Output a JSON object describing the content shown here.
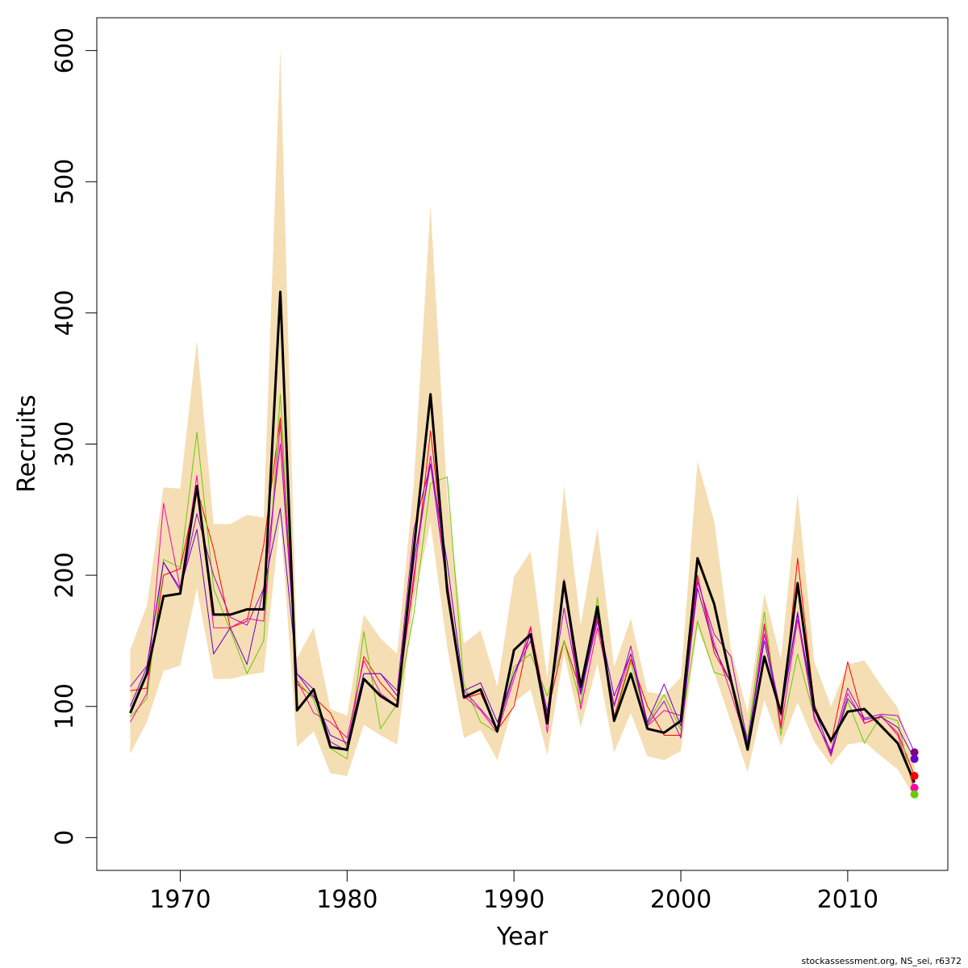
{
  "chart_data": {
    "type": "line",
    "xlabel": "Year",
    "ylabel": "Recruits",
    "xlim": [
      1965,
      2016
    ],
    "ylim": [
      -25,
      625
    ],
    "x_ticks": [
      1970,
      1980,
      1990,
      2000,
      2010
    ],
    "y_ticks": [
      0,
      100,
      200,
      300,
      400,
      500,
      600
    ],
    "x": [
      1967,
      1968,
      1969,
      1970,
      1971,
      1972,
      1973,
      1974,
      1975,
      1976,
      1977,
      1978,
      1979,
      1980,
      1981,
      1982,
      1983,
      1984,
      1985,
      1986,
      1987,
      1988,
      1989,
      1990,
      1991,
      1992,
      1993,
      1994,
      1995,
      1996,
      1997,
      1998,
      1999,
      2000,
      2001,
      2002,
      2003,
      2004,
      2005,
      2006,
      2007,
      2008,
      2009,
      2010,
      2011,
      2012,
      2013,
      2014
    ],
    "band": {
      "color": "#f5deb3",
      "lower": [
        64,
        88,
        127,
        131,
        190,
        121,
        121,
        124,
        126,
        243,
        69,
        81,
        49,
        47,
        86,
        78,
        71,
        180,
        240,
        145,
        76,
        82,
        59,
        103,
        113,
        63,
        140,
        84,
        133,
        65,
        95,
        62,
        59,
        66,
        160,
        126,
        88,
        50,
        105,
        70,
        103,
        73,
        55,
        71,
        73,
        62,
        52,
        31
      ],
      "upper": [
        143,
        177,
        267,
        266,
        379,
        239,
        239,
        246,
        244,
        601,
        137,
        160,
        98,
        93,
        170,
        152,
        140,
        270,
        482,
        260,
        148,
        158,
        115,
        199,
        218,
        121,
        268,
        162,
        236,
        130,
        167,
        111,
        109,
        122,
        287,
        241,
        144,
        95,
        186,
        136,
        263,
        134,
        100,
        132,
        135,
        116,
        99,
        55
      ]
    },
    "series": [
      {
        "color": "#000000",
        "width": 3,
        "values": [
          95,
          125,
          184,
          186,
          268,
          170,
          170,
          174,
          174,
          416,
          97,
          113,
          69,
          67,
          121,
          108,
          100,
          220,
          338,
          188,
          107,
          113,
          81,
          143,
          155,
          87,
          195,
          115,
          176,
          89,
          125,
          83,
          80,
          89,
          213,
          178,
          120,
          67,
          138,
          95,
          194,
          98,
          74,
          96,
          98,
          85,
          72,
          42
        ]
      },
      {
        "color": "#ff0000",
        "width": 1,
        "values": [
          112,
          114,
          200,
          205,
          266,
          220,
          160,
          165,
          223,
          320,
          117,
          107,
          95,
          69,
          138,
          118,
          104,
          195,
          310,
          195,
          106,
          110,
          82,
          100,
          160,
          95,
          150,
          112,
          168,
          92,
          136,
          100,
          78,
          78,
          200,
          141,
          118,
          68,
          163,
          85,
          213,
          101,
          72,
          134,
          87,
          92,
          80,
          47
        ]
      },
      {
        "color": "#66cc00",
        "width": 1,
        "values": [
          92,
          106,
          212,
          206,
          309,
          190,
          158,
          125,
          150,
          338,
          120,
          105,
          68,
          60,
          157,
          83,
          102,
          170,
          270,
          275,
          117,
          88,
          80,
          130,
          140,
          108,
          150,
          102,
          183,
          90,
          134,
          87,
          109,
          82,
          165,
          126,
          122,
          76,
          172,
          78,
          140,
          92,
          63,
          104,
          72,
          93,
          89,
          33
        ]
      },
      {
        "color": "#ff00aa",
        "width": 1,
        "values": [
          88,
          110,
          255,
          190,
          276,
          160,
          160,
          167,
          165,
          316,
          120,
          95,
          88,
          76,
          135,
          110,
          100,
          200,
          291,
          195,
          108,
          97,
          80,
          121,
          161,
          80,
          197,
          98,
          160,
          100,
          140,
          85,
          97,
          93,
          198,
          148,
          110,
          70,
          161,
          83,
          166,
          93,
          62,
          110,
          87,
          93,
          78,
          38
        ]
      },
      {
        "color": "#aa00cc",
        "width": 1,
        "values": [
          115,
          131,
          210,
          188,
          247,
          200,
          168,
          162,
          190,
          300,
          125,
          113,
          73,
          66,
          125,
          125,
          112,
          235,
          285,
          190,
          112,
          98,
          83,
          125,
          150,
          92,
          175,
          109,
          165,
          101,
          146,
          86,
          104,
          76,
          195,
          155,
          138,
          72,
          155,
          95,
          172,
          90,
          66,
          114,
          91,
          94,
          93,
          65
        ]
      },
      {
        "color": "#6600cc",
        "width": 1,
        "values": [
          100,
          130,
          210,
          190,
          235,
          140,
          160,
          132,
          190,
          251,
          125,
          108,
          78,
          72,
          125,
          125,
          108,
          210,
          285,
          210,
          112,
          118,
          88,
          125,
          155,
          96,
          190,
          110,
          170,
          108,
          140,
          88,
          117,
          85,
          190,
          145,
          118,
          73,
          150,
          93,
          170,
          98,
          64,
          106,
          90,
          92,
          84,
          60
        ]
      }
    ],
    "endpoints": [
      {
        "color": "#800080",
        "value": 65
      },
      {
        "color": "#6600cc",
        "value": 60
      },
      {
        "color": "#ff0000",
        "value": 47
      },
      {
        "color": "#ff00aa",
        "value": 38
      },
      {
        "color": "#66cc00",
        "value": 33
      }
    ]
  },
  "footer": {
    "credit": "stockassessment.org, NS_sei, r6372"
  }
}
